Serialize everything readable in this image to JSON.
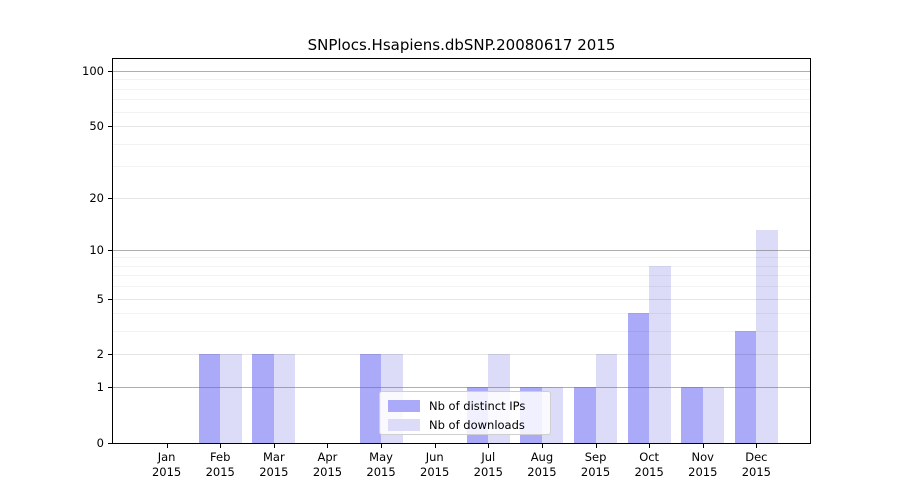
{
  "figure_title": "SNPlocs.Hsapiens.dbSNP.20080617 2015",
  "colors": {
    "distinct_ips_bar": "#aaaaf8",
    "downloads_bar": "#dcdcf8",
    "axis": "#000000",
    "decade_gridline": "#6e6e6e",
    "minor_gridline": "#e8e8e8",
    "legend_border": "#cfcfcf"
  },
  "legend": {
    "items": [
      {
        "label": "Nb of distinct IPs",
        "color": "#aaaaf8"
      },
      {
        "label": "Nb of downloads",
        "color": "#dcdcf8"
      }
    ]
  },
  "chart_data": {
    "type": "bar",
    "title": "SNPlocs.Hsapiens.dbSNP.20080617 2015",
    "categories": [
      "Jan",
      "Feb",
      "Mar",
      "Apr",
      "May",
      "Jun",
      "Jul",
      "Aug",
      "Sep",
      "Oct",
      "Nov",
      "Dec"
    ],
    "tick_label_year": "2015",
    "series": [
      {
        "name": "Nb of distinct IPs",
        "color": "#aaaaf8",
        "values": [
          0,
          2,
          2,
          0,
          2,
          0,
          1,
          1,
          1,
          4,
          1,
          3
        ]
      },
      {
        "name": "Nb of downloads",
        "color": "#dcdcf8",
        "values": [
          0,
          2,
          2,
          0,
          2,
          0,
          2,
          1,
          2,
          8,
          1,
          13
        ]
      }
    ],
    "yscale": "log1p",
    "ylim": [
      0,
      116
    ],
    "y_ticks": [
      0,
      1,
      2,
      5,
      10,
      20,
      50,
      100
    ],
    "y_decade_lines": [
      1,
      10,
      100
    ],
    "y_minor_gridlines": [
      3,
      4,
      6,
      7,
      8,
      9,
      30,
      40,
      60,
      70,
      80,
      90
    ],
    "grid": true,
    "legend_position": "lower center",
    "xlabel": "",
    "ylabel": ""
  }
}
